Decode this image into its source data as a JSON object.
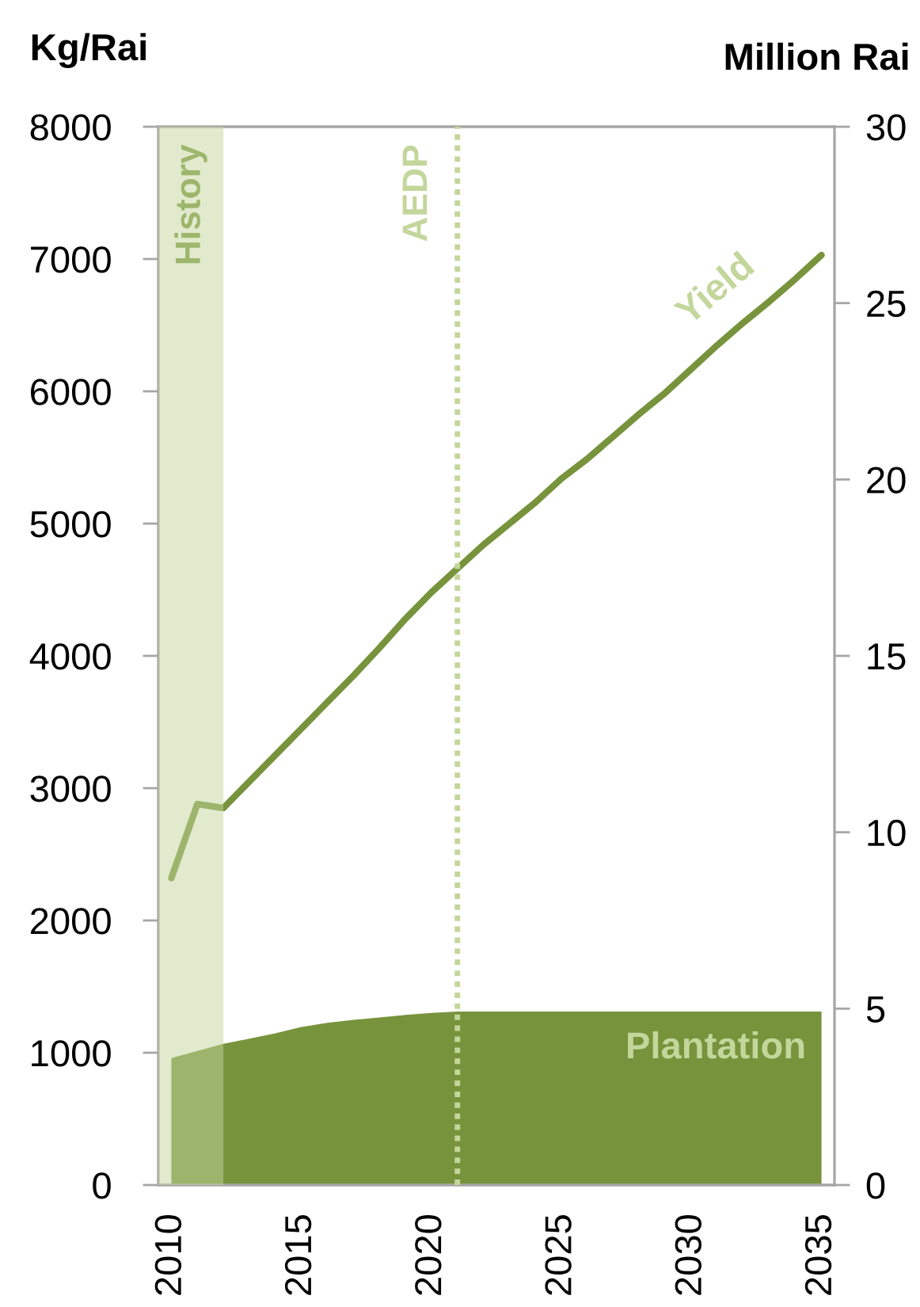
{
  "chart_data": {
    "type": "line",
    "x": [
      2010,
      2011,
      2012,
      2013,
      2014,
      2015,
      2016,
      2017,
      2018,
      2019,
      2020,
      2021,
      2022,
      2023,
      2024,
      2025,
      2026,
      2027,
      2028,
      2029,
      2030,
      2031,
      2032,
      2033,
      2034,
      2035
    ],
    "xlim": [
      2009.5,
      2035.5
    ],
    "xticks": [
      2010,
      2015,
      2020,
      2025,
      2030,
      2035
    ],
    "ylabel": "Kg/Rai",
    "ylim": [
      0,
      8000
    ],
    "yticks": [
      0,
      1000,
      2000,
      3000,
      4000,
      5000,
      6000,
      7000,
      8000
    ],
    "y2label": "Million Rai",
    "y2lim": [
      0,
      30
    ],
    "y2ticks": [
      0,
      5,
      10,
      15,
      20,
      25,
      30
    ],
    "series": [
      {
        "type": "area",
        "name": "Plantation",
        "color": "#77933c",
        "axis": "y2",
        "values": [
          3.6,
          3.8,
          4.0,
          4.15,
          4.3,
          4.48,
          4.6,
          4.68,
          4.75,
          4.82,
          4.88,
          4.92,
          4.92,
          4.92,
          4.92,
          4.92,
          4.92,
          4.92,
          4.92,
          4.92,
          4.92,
          4.92,
          4.92,
          4.92,
          4.92,
          4.92
        ]
      },
      {
        "name": "Yield",
        "color": "#77933c",
        "values": [
          2320,
          2880,
          2850,
          3050,
          3250,
          3450,
          3650,
          3850,
          4060,
          4280,
          4480,
          4660,
          4840,
          5000,
          5160,
          5340,
          5490,
          5660,
          5830,
          5990,
          6170,
          6350,
          6520,
          6680,
          6850,
          7030
        ]
      }
    ],
    "bands": [
      {
        "axis": "x",
        "from": 2009.5,
        "to": 2012,
        "label": "History",
        "color": "#c3d69b"
      }
    ],
    "ref_lines": [
      {
        "axis": "x",
        "value": 2021,
        "label": "AEDP",
        "color": "#c3d69b",
        "line_style": "dotted"
      }
    ]
  }
}
